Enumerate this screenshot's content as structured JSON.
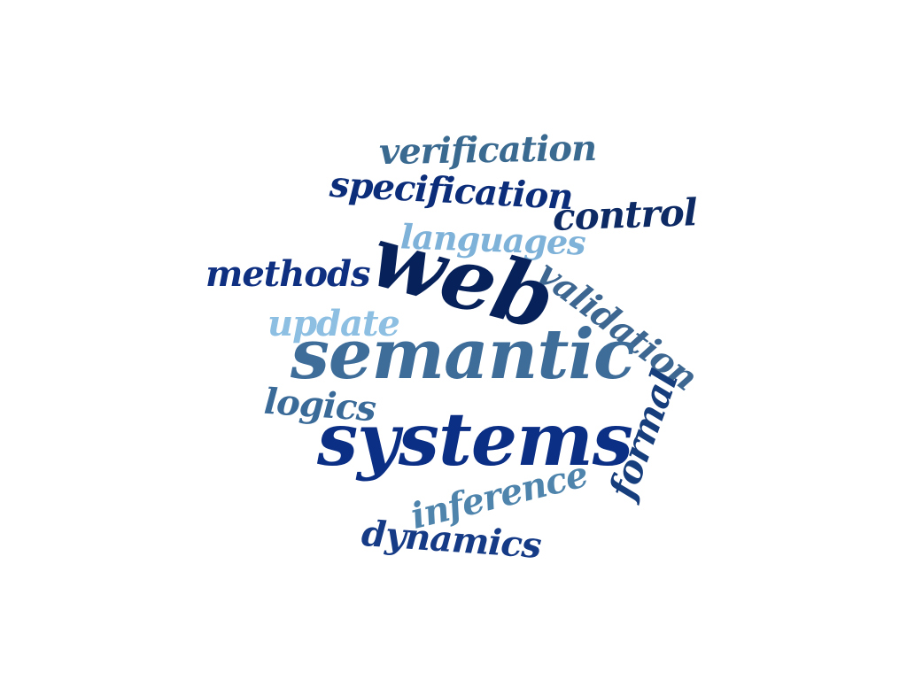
{
  "words": {
    "verification": {
      "text": "verification",
      "color": "#3b6a91"
    },
    "specification": {
      "text": "specification",
      "color": "#0b2d7a"
    },
    "control": {
      "text": "control",
      "color": "#0d2a64"
    },
    "languages": {
      "text": "languages",
      "color": "#7fb2d8"
    },
    "methods": {
      "text": "methods",
      "color": "#0f2f80"
    },
    "web": {
      "text": "web",
      "color": "#07225a"
    },
    "validation": {
      "text": "validation",
      "color": "#3d6690"
    },
    "update": {
      "text": "update",
      "color": "#8cbfe2"
    },
    "semantic": {
      "text": "semantic",
      "color": "#3e6d9a"
    },
    "logics": {
      "text": "logics",
      "color": "#3a6a98"
    },
    "formal": {
      "text": "formal",
      "color": "#173e7c"
    },
    "systems": {
      "text": "systems",
      "color": "#0c2f86"
    },
    "inference": {
      "text": "inference",
      "color": "#4f85ad"
    },
    "dynamics": {
      "text": "dynamics",
      "color": "#163b86"
    }
  }
}
